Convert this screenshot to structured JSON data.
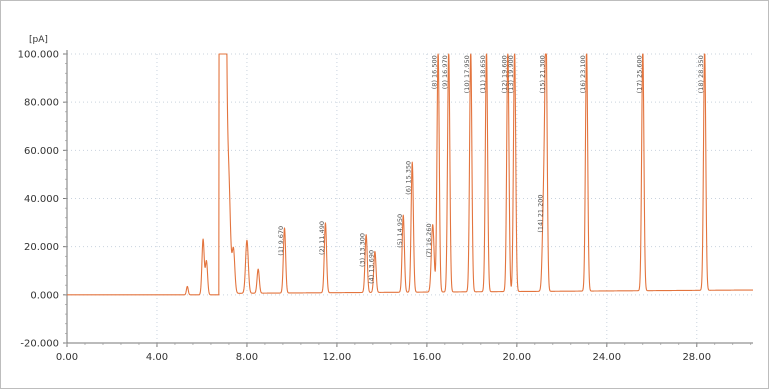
{
  "chart_data": {
    "type": "line",
    "title": "",
    "ylabel_unit": "[pA]",
    "xlabel": "",
    "xlim": [
      0,
      30.5
    ],
    "ylim": [
      -20,
      100
    ],
    "x_ticks": [
      {
        "value": 0,
        "label": "0.00"
      },
      {
        "value": 4,
        "label": "4.00"
      },
      {
        "value": 8,
        "label": "8.00"
      },
      {
        "value": 12,
        "label": "12.00"
      },
      {
        "value": 16,
        "label": "16.00"
      },
      {
        "value": 20,
        "label": "20.00"
      },
      {
        "value": 24,
        "label": "24.00"
      },
      {
        "value": 28,
        "label": "28.00"
      }
    ],
    "y_ticks": [
      {
        "value": -20,
        "label": "-20.000"
      },
      {
        "value": 0,
        "label": "0.000"
      },
      {
        "value": 20,
        "label": "20.000"
      },
      {
        "value": 40,
        "label": "40.000"
      },
      {
        "value": 60,
        "label": "60.000"
      },
      {
        "value": 80,
        "label": "80.000"
      },
      {
        "value": 100,
        "label": "100.000"
      }
    ],
    "series": [
      {
        "color": "#e3743e",
        "baseline": 0,
        "solvent_peak": {
          "start": 6.75,
          "end": 7.1,
          "height": 100
        },
        "peaks": [
          {
            "rt": 5.35,
            "height": 3.5,
            "width": 0.04
          },
          {
            "rt": 6.05,
            "height": 23,
            "width": 0.05
          },
          {
            "rt": 6.2,
            "height": 14,
            "width": 0.05
          },
          {
            "rt": 7.2,
            "height": 35,
            "width": 0.07
          },
          {
            "rt": 7.4,
            "height": 18,
            "width": 0.06
          },
          {
            "rt": 8.0,
            "height": 22,
            "width": 0.06
          },
          {
            "rt": 8.5,
            "height": 10,
            "width": 0.05
          },
          {
            "rt": 9.67,
            "height": 27,
            "width": 0.05,
            "label": "(1) 9.670"
          },
          {
            "rt": 11.49,
            "height": 29,
            "width": 0.05,
            "label": "(2) 11.490"
          },
          {
            "rt": 13.3,
            "height": 24,
            "width": 0.05,
            "label": "(3) 13.300"
          },
          {
            "rt": 13.69,
            "height": 17,
            "width": 0.05,
            "label": "(4) 13.690"
          },
          {
            "rt": 14.95,
            "height": 32,
            "width": 0.05,
            "label": "(5) 14.950"
          },
          {
            "rt": 15.35,
            "height": 54,
            "width": 0.05,
            "label": "(6) 15.350"
          },
          {
            "rt": 16.26,
            "height": 28,
            "width": 0.06,
            "label": "(7) 16.260"
          },
          {
            "rt": 16.5,
            "height": 100,
            "width": 0.05,
            "label": "(8) 16.500"
          },
          {
            "rt": 16.97,
            "height": 100,
            "width": 0.05,
            "label": "(9) 16.970"
          },
          {
            "rt": 17.95,
            "height": 100,
            "width": 0.05,
            "label": "(10) 17.950"
          },
          {
            "rt": 18.65,
            "height": 100,
            "width": 0.05,
            "label": "(11) 18.650"
          },
          {
            "rt": 19.6,
            "height": 100,
            "width": 0.05,
            "label": "(12) 19.600"
          },
          {
            "rt": 19.9,
            "height": 100,
            "width": 0.05,
            "label": "(13) 19.900"
          },
          {
            "rt": 21.2,
            "height": 40,
            "width": 0.06,
            "label": "(14) 21.200"
          },
          {
            "rt": 21.3,
            "height": 100,
            "width": 0.05,
            "label": "(15) 21.300"
          },
          {
            "rt": 23.1,
            "height": 100,
            "width": 0.05,
            "label": "(16) 23.100"
          },
          {
            "rt": 25.6,
            "height": 100,
            "width": 0.05,
            "label": "(17) 25.600"
          },
          {
            "rt": 28.35,
            "height": 100,
            "width": 0.05,
            "label": "(18) 28.350"
          }
        ]
      }
    ],
    "grid": true,
    "legend": "none"
  }
}
